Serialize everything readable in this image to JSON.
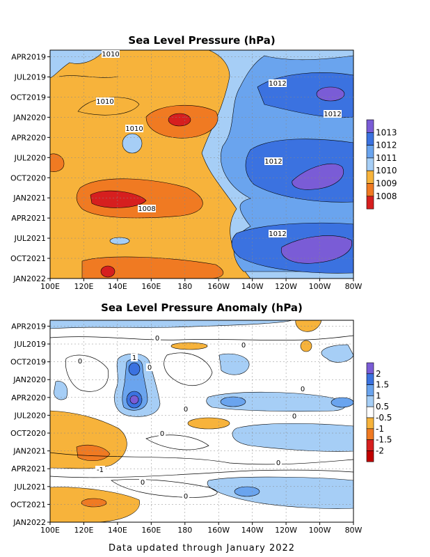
{
  "footer": "Data updated through January 2022",
  "chart_data": [
    {
      "type": "heatmap",
      "title": "Sea Level Pressure (hPa)",
      "x_ticks": [
        "100E",
        "120E",
        "140E",
        "160E",
        "180",
        "160W",
        "140W",
        "120W",
        "100W",
        "80W"
      ],
      "y_ticks": [
        "APR2019",
        "JUL2019",
        "OCT2019",
        "JAN2020",
        "APR2020",
        "JUL2020",
        "OCT2020",
        "JAN2021",
        "APR2021",
        "JUL2021",
        "OCT2021",
        "JAN2022"
      ],
      "colorbar": {
        "levels": [
          "1013",
          "1012",
          "1011",
          "1010",
          "1009",
          "1008"
        ],
        "colors": [
          "#7a5cd6",
          "#3b72e0",
          "#6aa4ee",
          "#a6cef6",
          "#f7b33b",
          "#f07a22",
          "#d61f1f"
        ]
      },
      "contour_labels": [
        "1010",
        "1012",
        "1010",
        "1012",
        "1010",
        "1012",
        "1008",
        "1012"
      ]
    },
    {
      "type": "heatmap",
      "title": "Sea Level Pressure Anomaly (hPa)",
      "x_ticks": [
        "100E",
        "120E",
        "140E",
        "160E",
        "180",
        "160W",
        "140W",
        "120W",
        "100W",
        "80W"
      ],
      "y_ticks": [
        "APR2019",
        "JUL2019",
        "OCT2019",
        "JAN2020",
        "APR2020",
        "JUL2020",
        "OCT2020",
        "JAN2021",
        "APR2021",
        "JUL2021",
        "OCT2021",
        "JAN2022"
      ],
      "colorbar": {
        "levels": [
          "2",
          "1.5",
          "1",
          "0.5",
          "-0.5",
          "-1",
          "-1.5",
          "-2"
        ],
        "colors": [
          "#7a5cd6",
          "#3b72e0",
          "#6aa4ee",
          "#a6cef6",
          "#ffffff",
          "#f7b33b",
          "#f07a22",
          "#d61f1f",
          "#c00000"
        ]
      },
      "contour_labels": [
        "0",
        "0",
        "0",
        "0",
        "1",
        "0",
        "0",
        "0",
        "0",
        "0",
        "-1",
        "0",
        "0"
      ]
    }
  ]
}
